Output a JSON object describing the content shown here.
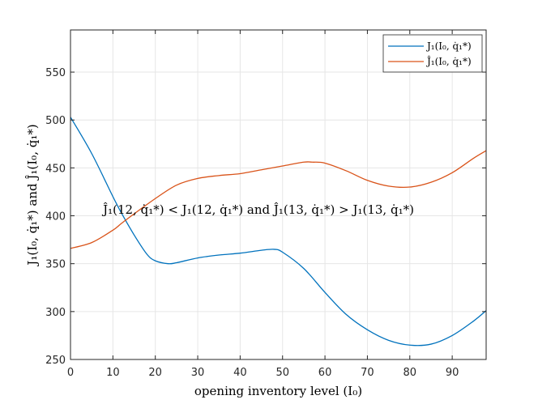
{
  "chart_data": {
    "type": "line",
    "title": "",
    "xlabel": "opening inventory level (I₀)",
    "ylabel": "J₁(I₀, q̇₁*) and Ĵ₁(I₀, q̇₁*)",
    "xlim": [
      0,
      98
    ],
    "ylim": [
      250,
      594
    ],
    "xticks": [
      0,
      10,
      20,
      30,
      40,
      50,
      60,
      70,
      80,
      90
    ],
    "yticks": [
      250,
      300,
      350,
      400,
      450,
      500,
      550
    ],
    "grid": true,
    "legend_position": "top-right",
    "annotation": {
      "text": "Ĵ₁(12, q̇₁*) < J₁(12, q̇₁*) and Ĵ₁(13, q̇₁*) > J₁(13, q̇₁*)",
      "x": 47,
      "y": 402
    },
    "series": [
      {
        "name": "J₁(I₀, q̇₁*)",
        "color": "#0072BD",
        "x": [
          0,
          5,
          10,
          12,
          15,
          18,
          20,
          23,
          25,
          30,
          35,
          40,
          45,
          48,
          50,
          55,
          60,
          65,
          70,
          75,
          80,
          85,
          90,
          95,
          98
        ],
        "y": [
          503,
          465,
          420,
          403,
          380,
          360,
          353,
          350,
          351,
          356,
          359,
          361,
          364,
          365,
          362,
          345,
          320,
          297,
          281,
          270,
          265,
          266,
          275,
          290,
          301
        ]
      },
      {
        "name": "Ĵ₁(I₀, q̇₁*)",
        "color": "#D95319",
        "x": [
          0,
          5,
          10,
          12,
          15,
          20,
          25,
          30,
          35,
          40,
          45,
          50,
          55,
          57,
          60,
          65,
          70,
          75,
          80,
          85,
          90,
          95,
          98
        ],
        "y": [
          366,
          372,
          385,
          392,
          402,
          418,
          432,
          439,
          442,
          444,
          448,
          452,
          456,
          456,
          455,
          447,
          437,
          431,
          430,
          435,
          445,
          460,
          468
        ]
      }
    ]
  }
}
